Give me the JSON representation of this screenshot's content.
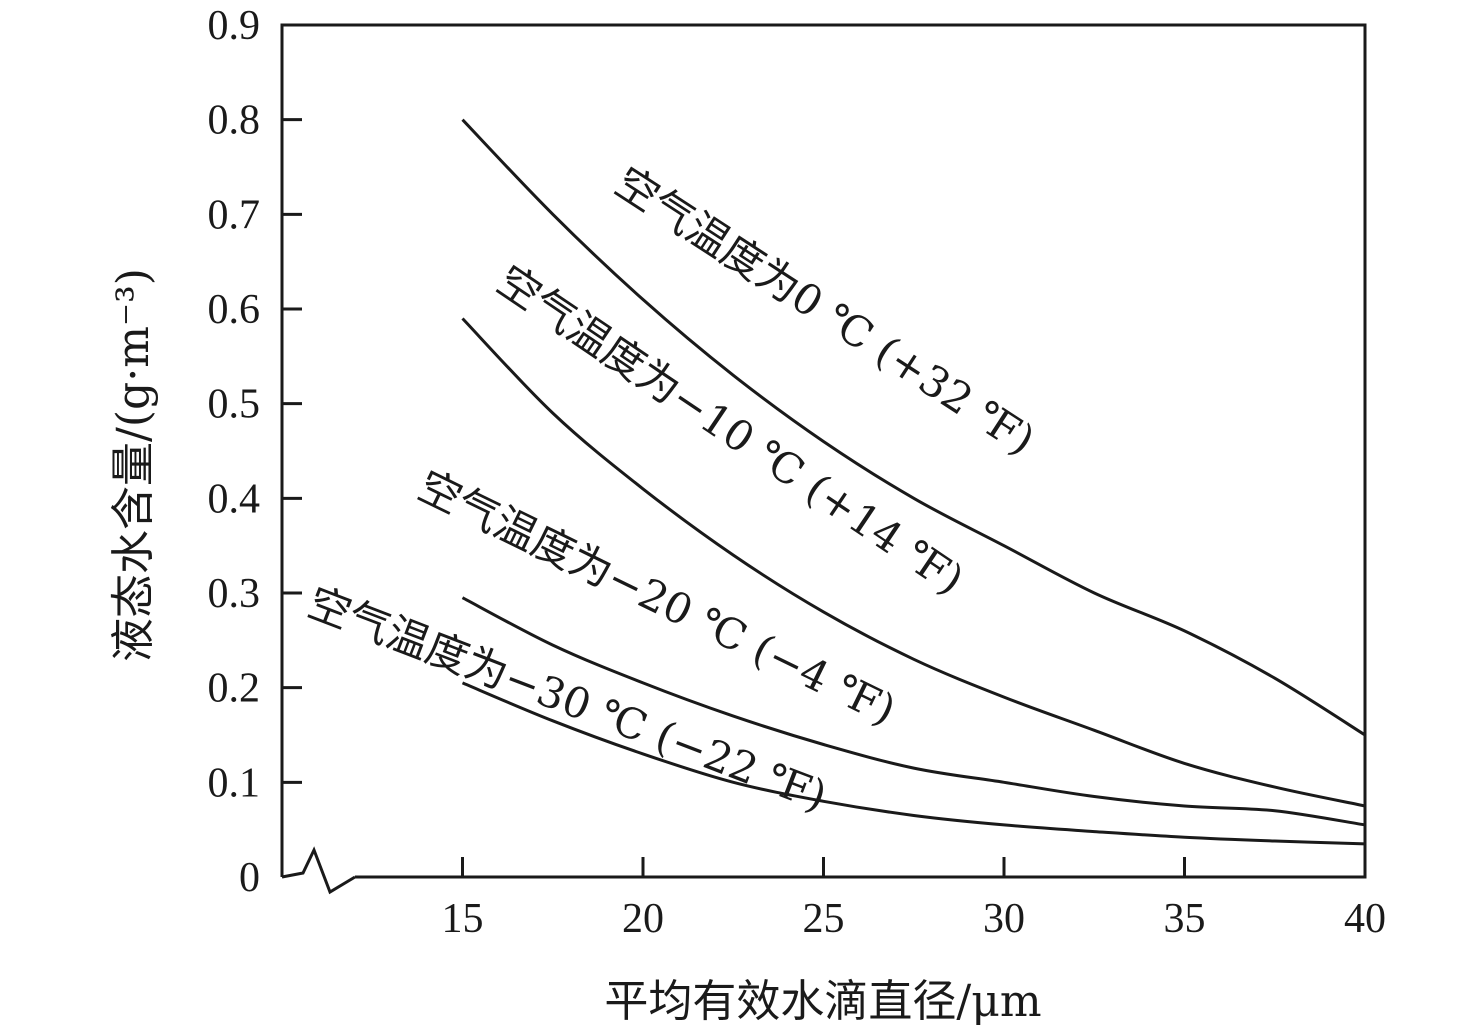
{
  "chart_data": {
    "type": "line",
    "xlabel": "平均有效水滴直径/μm",
    "ylabel": "液态水含量/(g·m⁻³)",
    "xlim": [
      10,
      40
    ],
    "ylim": [
      0,
      0.9
    ],
    "x_ticks": [
      15,
      20,
      25,
      30,
      35,
      40
    ],
    "y_ticks": [
      0,
      0.1,
      0.2,
      0.3,
      0.4,
      0.5,
      0.6,
      0.7,
      0.8,
      0.9
    ],
    "x_tick_labels": [
      "15",
      "20",
      "25",
      "30",
      "35",
      "40"
    ],
    "y_tick_labels": [
      "0",
      "0.1",
      "0.2",
      "0.3",
      "0.4",
      "0.5",
      "0.6",
      "0.7",
      "0.8",
      "0.9"
    ],
    "axis_break": "x",
    "series": [
      {
        "name": "空气温度为0 ℃ (+32 ℉)",
        "x": [
          15,
          17.5,
          20,
          22.5,
          25,
          27.5,
          30,
          32.5,
          35,
          37.5,
          40
        ],
        "y": [
          0.8,
          0.7,
          0.61,
          0.53,
          0.46,
          0.4,
          0.35,
          0.3,
          0.26,
          0.21,
          0.15
        ]
      },
      {
        "name": "空气温度为−10 ℃ (+14 ℉)",
        "x": [
          15,
          17.5,
          20,
          22.5,
          25,
          27.5,
          30,
          32.5,
          35,
          37.5,
          40
        ],
        "y": [
          0.59,
          0.49,
          0.41,
          0.34,
          0.28,
          0.23,
          0.19,
          0.155,
          0.12,
          0.095,
          0.075
        ]
      },
      {
        "name": "空气温度为−20 ℃ (−4 ℉)",
        "x": [
          15,
          17.5,
          20,
          22.5,
          25,
          27.5,
          30,
          32.5,
          35,
          37.5,
          40
        ],
        "y": [
          0.295,
          0.245,
          0.205,
          0.17,
          0.14,
          0.115,
          0.1,
          0.085,
          0.075,
          0.07,
          0.055
        ]
      },
      {
        "name": "空气温度为−30 ℃ (−22 ℉)",
        "x": [
          15,
          17.5,
          20,
          22.5,
          25,
          27.5,
          30,
          32.5,
          35,
          37.5,
          40
        ],
        "y": [
          0.205,
          0.165,
          0.13,
          0.1,
          0.08,
          0.065,
          0.055,
          0.048,
          0.042,
          0.038,
          0.035
        ]
      }
    ],
    "annotations": [
      "空气温度为0 ℃ (+32 ℉)",
      "空气温度为−10 ℃ (+14 ℉)",
      "空气温度为−20 ℃ (−4 ℉)",
      "空气温度为−30 ℃ (−22 ℉)"
    ]
  }
}
